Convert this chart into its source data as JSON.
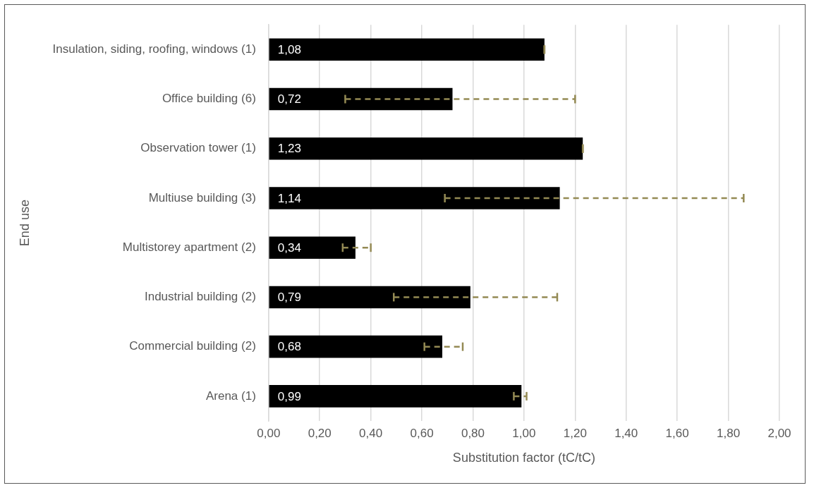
{
  "chart_data": {
    "type": "bar",
    "orientation": "horizontal",
    "xlabel": "Substitution factor (tC/tC)",
    "ylabel": "End use",
    "categories": [
      "Insulation, siding, roofing, windows (1)",
      "Office building (6)",
      "Observation tower (1)",
      "Multiuse building (3)",
      "Multistorey apartment (2)",
      "Industrial building (2)",
      "Commercial building (2)",
      "Arena (1)"
    ],
    "values": [
      1.08,
      0.72,
      1.23,
      1.14,
      0.34,
      0.79,
      0.68,
      0.99
    ],
    "errors": [
      0,
      [
        0.3,
        1.2
      ],
      0,
      [
        0.69,
        1.86
      ],
      [
        0.29,
        0.4
      ],
      [
        0.49,
        1.13
      ],
      [
        0.61,
        0.76
      ],
      [
        0.96,
        1.01
      ]
    ],
    "color": "#000000",
    "value_labels": [
      "1,08",
      "0,72",
      "1,23",
      "1,14",
      "0,34",
      "0,79",
      "0,68",
      "0,99"
    ],
    "xlim": [
      0,
      2
    ],
    "xticks": [
      {
        "value": 0,
        "label": "0,00"
      },
      {
        "value": 0.2,
        "label": "0,20"
      },
      {
        "value": 0.4,
        "label": "0,40"
      },
      {
        "value": 0.6,
        "label": "0,60"
      },
      {
        "value": 0.8,
        "label": "0,80"
      },
      {
        "value": 1,
        "label": "1,00"
      },
      {
        "value": 1.2,
        "label": "1,20"
      },
      {
        "value": 1.4,
        "label": "1,40"
      },
      {
        "value": 1.6,
        "label": "1,60"
      },
      {
        "value": 1.8,
        "label": "1,80"
      },
      {
        "value": 2,
        "label": "2,00"
      }
    ],
    "grid": "x",
    "legend": false,
    "line_style": "dashed"
  }
}
